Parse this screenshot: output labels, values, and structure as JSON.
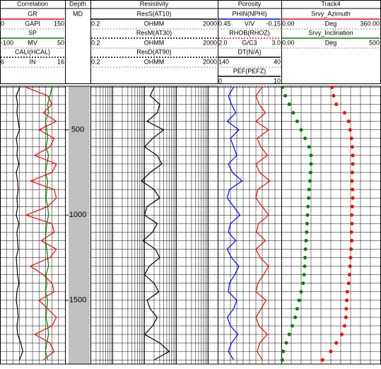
{
  "tracks": [
    {
      "title": "Correlation",
      "curves": [
        {
          "name": "GR",
          "unit": "GAPI",
          "left": 0,
          "right": 150,
          "color": "#ff0000",
          "values": [
            60,
            110,
            120,
            100,
            130,
            90,
            125,
            115,
            80,
            130,
            120,
            70,
            125,
            130,
            110,
            60,
            120,
            125,
            95,
            130,
            115,
            70,
            100,
            120,
            125,
            90,
            110,
            130,
            120,
            80,
            115,
            125,
            100
          ]
        },
        {
          "name": "SP",
          "unit": "MV",
          "left": -100,
          "right": 50,
          "color": "#008000",
          "values": [
            20,
            15,
            10,
            12,
            5,
            8,
            10,
            6,
            12,
            8,
            5,
            10,
            8,
            6,
            10,
            12,
            8,
            6,
            5,
            8,
            10,
            12,
            6,
            8,
            5,
            10,
            8,
            6,
            10,
            12,
            8,
            5,
            10
          ]
        },
        {
          "name": "CALI(HCAL)",
          "unit": "IN",
          "left": 6,
          "right": 16,
          "color": "#000000",
          "dashed": true,
          "values": [
            9,
            8.5,
            8.7,
            8.6,
            8.8,
            9,
            8.5,
            8.7,
            8.6,
            8.9,
            8.5,
            8.7,
            8.8,
            8.6,
            8.7,
            8.5,
            8.9,
            8.6,
            8.7,
            8.8,
            8.5,
            8.6,
            8.7,
            8.9,
            8.6,
            8.5,
            8.7,
            8.8,
            8.6,
            8.7,
            9.2,
            9.5,
            9
          ]
        }
      ]
    },
    {
      "title": "Depth",
      "label": "MD"
    },
    {
      "title": "Resistivity",
      "log": true,
      "curves": [
        {
          "name": "ResS(AT10)",
          "unit": "OHMM",
          "left": 0.2,
          "right": 2000,
          "color": "#000000"
        },
        {
          "name": "ResM(AT30)",
          "unit": "OHMM",
          "left": 0.2,
          "right": 2000,
          "color": "#000000",
          "dashed": true
        },
        {
          "name": "ResD(AT90)",
          "unit": "OHMM",
          "left": 0.2,
          "right": 2000,
          "color": "#000000",
          "dashed": true,
          "values": [
            20,
            15,
            30,
            25,
            12,
            40,
            18,
            10,
            25,
            35,
            15,
            8,
            20,
            30,
            12,
            10,
            25,
            18,
            9,
            22,
            30,
            14,
            10,
            20,
            28,
            12,
            15,
            25,
            18,
            10,
            30,
            60,
            20
          ]
        }
      ]
    },
    {
      "title": "Porosity",
      "curves": [
        {
          "name": "PHIN(NPHI)",
          "unit": "V/V",
          "left": 0.45,
          "right": -0.15,
          "color": "#0000ff",
          "values": [
            0.3,
            0.35,
            0.32,
            0.28,
            0.36,
            0.25,
            0.33,
            0.3,
            0.27,
            0.35,
            0.31,
            0.22,
            0.34,
            0.36,
            0.3,
            0.24,
            0.33,
            0.35,
            0.28,
            0.36,
            0.32,
            0.25,
            0.29,
            0.34,
            0.35,
            0.27,
            0.3,
            0.36,
            0.33,
            0.26,
            0.32,
            0.35,
            0.3
          ]
        },
        {
          "name": "RHOB(RHOZ)",
          "unit": "G/C3",
          "left": {
            "value": 2,
            "label": "2.0"
          },
          "right": {
            "value": 3,
            "label": "3.0"
          },
          "color": "#ff0000",
          "dashed": true,
          "values": [
            2.7,
            2.6,
            2.65,
            2.75,
            2.6,
            2.8,
            2.62,
            2.68,
            2.78,
            2.6,
            2.66,
            2.82,
            2.63,
            2.6,
            2.7,
            2.8,
            2.64,
            2.61,
            2.75,
            2.6,
            2.67,
            2.8,
            2.72,
            2.63,
            2.6,
            2.76,
            2.68,
            2.6,
            2.65,
            2.78,
            2.66,
            2.62,
            2.7
          ]
        },
        {
          "name": "DT(N/A)",
          "left": 140,
          "right": 40,
          "color": "#000000"
        },
        {
          "name": "PEF(PEFZ)",
          "left": 0,
          "right": 10,
          "color": "#000000"
        }
      ]
    },
    {
      "title": "Track4",
      "curves": [
        {
          "name": "Srvy_Azimuth",
          "unit": "Deg",
          "left": {
            "value": 0,
            "label": "0.00"
          },
          "right": {
            "value": 360,
            "label": "360.00"
          },
          "color": "#ff0000",
          "style": "dots",
          "values": [
            185,
            190,
            200,
            230,
            245,
            250,
            255,
            258,
            260,
            260,
            258,
            257,
            259,
            260,
            258,
            256,
            257,
            255,
            256,
            254,
            252,
            250,
            248,
            245,
            240,
            238,
            236,
            235,
            230,
            220,
            200,
            180,
            150
          ]
        },
        {
          "name": "Srvy_Inclination",
          "unit": "Deg",
          "left": {
            "value": 0,
            "label": "0.00"
          },
          "right": 500,
          "color": "#008000",
          "style": "dots",
          "values": [
            5,
            20,
            40,
            60,
            80,
            100,
            120,
            140,
            150,
            150,
            148,
            145,
            140,
            138,
            135,
            132,
            130,
            128,
            125,
            122,
            120,
            118,
            115,
            110,
            100,
            90,
            80,
            70,
            55,
            40,
            25,
            10,
            5
          ]
        }
      ]
    }
  ],
  "depths": [
    250,
    300,
    350,
    400,
    450,
    500,
    550,
    600,
    650,
    700,
    750,
    800,
    850,
    900,
    950,
    1000,
    1050,
    1100,
    1150,
    1200,
    1250,
    1300,
    1350,
    1400,
    1450,
    1500,
    1550,
    1600,
    1650,
    1700,
    1750,
    1800,
    1850
  ],
  "depth_range": [
    244,
    1874
  ],
  "depth_labels": [
    500,
    1000,
    1500
  ]
}
